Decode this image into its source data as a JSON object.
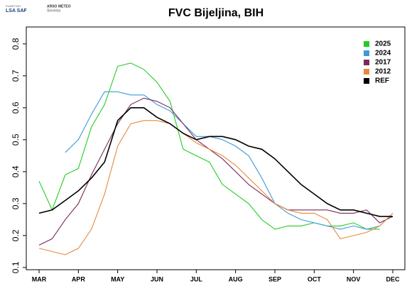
{
  "header": {
    "logos": [
      "EUMETSAT",
      "LSA SAF",
      "ARSO METEO",
      "Slovenia"
    ]
  },
  "chart_data": {
    "type": "line",
    "title": "FVC Bijeljina, BIH",
    "categories": [
      "MAR",
      null,
      null,
      "APR",
      null,
      null,
      "MAY",
      null,
      null,
      "JUN",
      null,
      null,
      "JUL",
      null,
      null,
      "AUG",
      null,
      null,
      "SEP",
      null,
      null,
      "OCT",
      null,
      null,
      "NOV",
      null,
      null,
      "DEC"
    ],
    "series": [
      {
        "name": "2025",
        "color": "#22cc22",
        "values": [
          0.37,
          0.28,
          0.39,
          0.41,
          0.54,
          0.61,
          0.73,
          0.74,
          0.72,
          0.68,
          0.62,
          0.47,
          0.45,
          0.43,
          0.36,
          0.33,
          0.3,
          0.25,
          0.22,
          0.23,
          0.23,
          0.24,
          0.23,
          0.23,
          0.24,
          0.22,
          0.22,
          null
        ]
      },
      {
        "name": "2024",
        "color": "#3a9ad9",
        "values": [
          null,
          null,
          0.46,
          0.5,
          0.58,
          0.65,
          0.65,
          0.64,
          0.64,
          0.61,
          0.59,
          0.55,
          0.51,
          0.51,
          0.5,
          0.48,
          0.45,
          0.38,
          0.3,
          0.27,
          0.25,
          0.24,
          0.23,
          0.22,
          0.23,
          0.22,
          0.23,
          0.27
        ]
      },
      {
        "name": "2017",
        "color": "#7a2a5a",
        "values": [
          0.17,
          0.19,
          0.25,
          0.3,
          0.39,
          0.47,
          0.55,
          0.61,
          0.63,
          0.62,
          0.6,
          0.55,
          0.5,
          0.47,
          0.44,
          0.4,
          0.36,
          0.33,
          0.3,
          0.28,
          0.28,
          0.28,
          0.28,
          0.27,
          0.27,
          0.28,
          0.24,
          0.26
        ]
      },
      {
        "name": "2012",
        "color": "#e8893a",
        "values": [
          0.16,
          0.15,
          0.14,
          0.16,
          0.22,
          0.33,
          0.48,
          0.55,
          0.56,
          0.56,
          0.55,
          0.52,
          0.49,
          0.47,
          0.45,
          0.42,
          0.38,
          0.34,
          0.3,
          0.28,
          0.27,
          0.27,
          0.25,
          0.19,
          0.2,
          0.21,
          0.23,
          0.27
        ]
      },
      {
        "name": "REF",
        "color": "#000000",
        "values": [
          0.27,
          0.28,
          0.31,
          0.34,
          0.38,
          0.43,
          0.56,
          0.6,
          0.6,
          0.57,
          0.55,
          0.52,
          0.5,
          0.51,
          0.51,
          0.5,
          0.48,
          0.47,
          0.44,
          0.4,
          0.36,
          0.33,
          0.3,
          0.28,
          0.28,
          0.27,
          0.26,
          0.26
        ]
      }
    ],
    "ylim": [
      0.093,
      0.853
    ],
    "yticks": [
      0.1,
      0.2,
      0.3,
      0.4,
      0.5,
      0.6,
      0.7,
      0.8
    ],
    "legend": "topright"
  }
}
